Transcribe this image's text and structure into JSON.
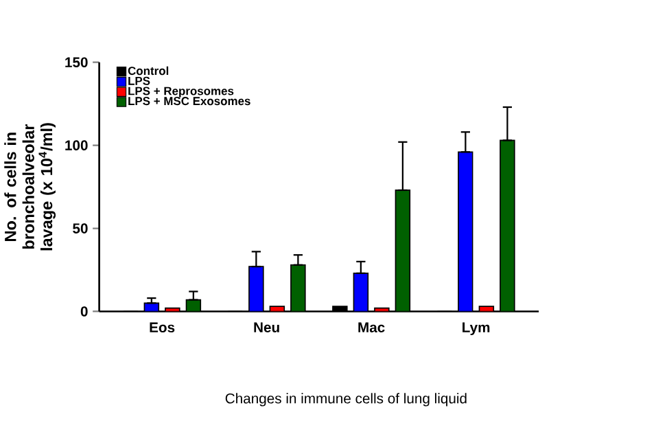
{
  "chart_data": {
    "type": "bar",
    "ylabel": "No. of cells in bronchoalveolar lavage (x 10$^{4}$/ml)",
    "categories": [
      "Eos",
      "Neu",
      "Mac",
      "Lym"
    ],
    "series": [
      {
        "name": "Control",
        "color": "#000000",
        "values": [
          0,
          0,
          3,
          0
        ]
      },
      {
        "name": "LPS",
        "color": "#0000ff",
        "values": [
          5,
          27,
          23,
          96
        ],
        "errors": [
          [
            5,
            8
          ],
          [
            27,
            36
          ],
          [
            23,
            30
          ],
          [
            96,
            108
          ]
        ]
      },
      {
        "name": "LPS + Reprosomes",
        "color": "#ff0000",
        "values": [
          2,
          3,
          2,
          3
        ]
      },
      {
        "name": "LPS + MSC Exosomes",
        "color": "#006000",
        "values": [
          7,
          28,
          73,
          103
        ],
        "errors": [
          [
            7,
            12
          ],
          [
            28,
            34
          ],
          [
            73,
            102
          ],
          [
            103,
            123
          ]
        ]
      }
    ],
    "ylim": [
      0,
      150
    ],
    "yticks": [
      0,
      50,
      100,
      150
    ],
    "grid": false,
    "legend": "top left",
    "annotations": [
      "Changes in immune cells of lung liquid"
    ]
  }
}
